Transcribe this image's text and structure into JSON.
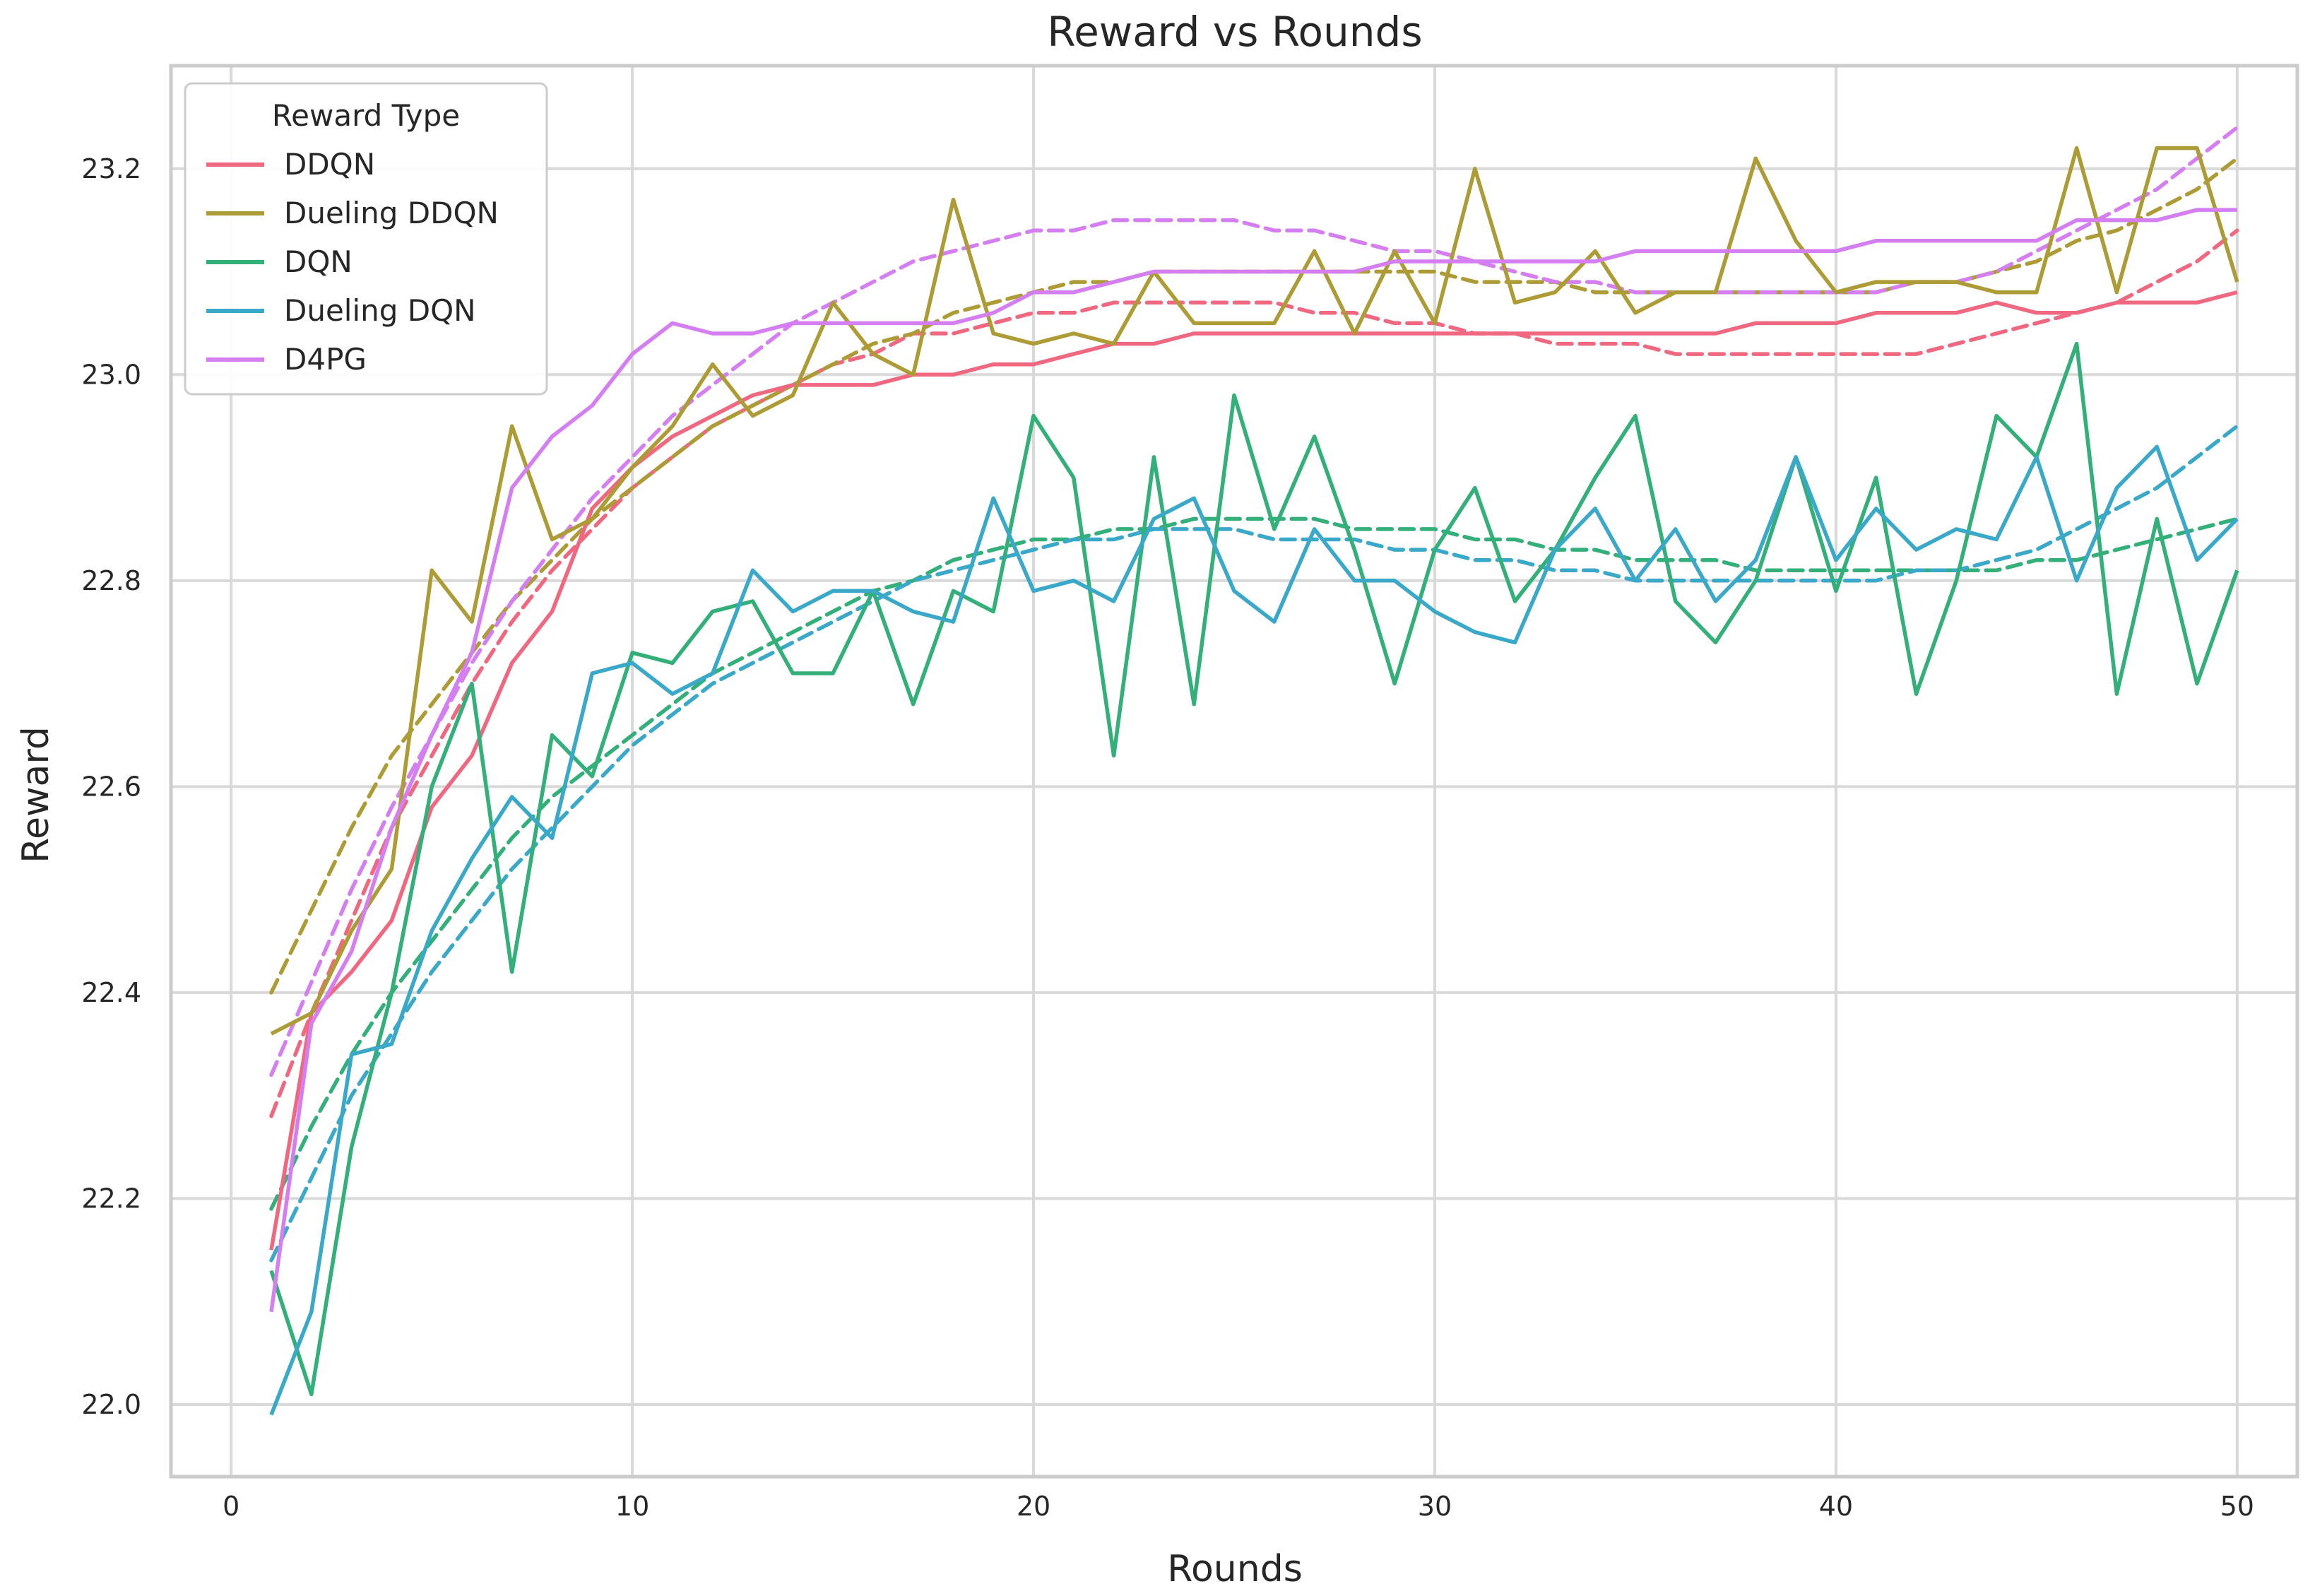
{
  "chart_data": {
    "type": "line",
    "title": "Reward vs Rounds",
    "xlabel": "Rounds",
    "ylabel": "Reward",
    "xlim": [
      -1.5,
      51.5
    ],
    "ylim": [
      21.93,
      23.3
    ],
    "xticks": [
      0,
      10,
      20,
      30,
      40,
      50
    ],
    "yticks": [
      22.0,
      22.2,
      22.4,
      22.6,
      22.8,
      23.0,
      23.2
    ],
    "xtick_labels": [
      "0",
      "10",
      "20",
      "30",
      "40",
      "50"
    ],
    "ytick_labels": [
      "22.0",
      "22.2",
      "22.4",
      "22.6",
      "22.8",
      "23.0",
      "23.2"
    ],
    "grid": true,
    "legend": {
      "title": "Reward Type",
      "placement": "top-left"
    },
    "trend_lines": "dashed polynomial fit per series",
    "x": [
      1,
      2,
      3,
      4,
      5,
      6,
      7,
      8,
      9,
      10,
      11,
      12,
      13,
      14,
      15,
      16,
      17,
      18,
      19,
      20,
      21,
      22,
      23,
      24,
      25,
      26,
      27,
      28,
      29,
      30,
      31,
      32,
      33,
      34,
      35,
      36,
      37,
      38,
      39,
      40,
      41,
      42,
      43,
      44,
      45,
      46,
      47,
      48,
      49,
      50
    ],
    "series": [
      {
        "name": "DDQN",
        "color": "#f0687f",
        "values": [
          22.15,
          22.38,
          22.42,
          22.47,
          22.58,
          22.63,
          22.72,
          22.77,
          22.87,
          22.91,
          22.94,
          22.96,
          22.98,
          22.99,
          22.99,
          22.99,
          23.0,
          23.0,
          23.01,
          23.01,
          23.02,
          23.03,
          23.03,
          23.04,
          23.04,
          23.04,
          23.04,
          23.04,
          23.04,
          23.04,
          23.04,
          23.04,
          23.04,
          23.04,
          23.04,
          23.04,
          23.04,
          23.05,
          23.05,
          23.05,
          23.06,
          23.06,
          23.06,
          23.07,
          23.06,
          23.06,
          23.07,
          23.07,
          23.07,
          23.08
        ],
        "trend": [
          22.28,
          22.38,
          22.47,
          22.56,
          22.63,
          22.7,
          22.76,
          22.81,
          22.85,
          22.89,
          22.92,
          22.95,
          22.97,
          22.99,
          23.01,
          23.02,
          23.04,
          23.04,
          23.05,
          23.06,
          23.06,
          23.07,
          23.07,
          23.07,
          23.07,
          23.07,
          23.06,
          23.06,
          23.05,
          23.05,
          23.04,
          23.04,
          23.03,
          23.03,
          23.03,
          23.02,
          23.02,
          23.02,
          23.02,
          23.02,
          23.02,
          23.02,
          23.03,
          23.04,
          23.05,
          23.06,
          23.07,
          23.09,
          23.11,
          23.14
        ]
      },
      {
        "name": "Dueling DDQN",
        "color": "#ad9c35",
        "values": [
          22.36,
          22.38,
          22.46,
          22.52,
          22.81,
          22.76,
          22.95,
          22.84,
          22.86,
          22.91,
          22.95,
          23.01,
          22.96,
          22.98,
          23.07,
          23.02,
          23.0,
          23.17,
          23.04,
          23.03,
          23.04,
          23.03,
          23.1,
          23.05,
          23.05,
          23.05,
          23.12,
          23.04,
          23.12,
          23.05,
          23.2,
          23.07,
          23.08,
          23.12,
          23.06,
          23.08,
          23.08,
          23.21,
          23.13,
          23.08,
          23.09,
          23.09,
          23.09,
          23.08,
          23.08,
          23.22,
          23.08,
          23.22,
          23.22,
          23.09
        ],
        "trend": [
          22.4,
          22.48,
          22.56,
          22.63,
          22.68,
          22.73,
          22.78,
          22.82,
          22.86,
          22.89,
          22.92,
          22.95,
          22.97,
          22.99,
          23.01,
          23.03,
          23.04,
          23.06,
          23.07,
          23.08,
          23.09,
          23.09,
          23.1,
          23.1,
          23.1,
          23.1,
          23.1,
          23.1,
          23.1,
          23.1,
          23.09,
          23.09,
          23.09,
          23.08,
          23.08,
          23.08,
          23.08,
          23.08,
          23.08,
          23.08,
          23.08,
          23.09,
          23.09,
          23.1,
          23.11,
          23.13,
          23.14,
          23.16,
          23.18,
          23.21
        ]
      },
      {
        "name": "DQN",
        "color": "#33b07a",
        "values": [
          22.13,
          22.01,
          22.25,
          22.4,
          22.6,
          22.7,
          22.42,
          22.65,
          22.61,
          22.73,
          22.72,
          22.77,
          22.78,
          22.71,
          22.71,
          22.79,
          22.68,
          22.79,
          22.77,
          22.96,
          22.9,
          22.63,
          22.92,
          22.68,
          22.98,
          22.85,
          22.94,
          22.83,
          22.7,
          22.83,
          22.89,
          22.78,
          22.83,
          22.9,
          22.96,
          22.78,
          22.74,
          22.8,
          22.92,
          22.79,
          22.9,
          22.69,
          22.8,
          22.96,
          22.92,
          23.03,
          22.69,
          22.86,
          22.7,
          22.81
        ],
        "trend": [
          22.19,
          22.27,
          22.34,
          22.4,
          22.45,
          22.5,
          22.55,
          22.59,
          22.62,
          22.65,
          22.68,
          22.71,
          22.73,
          22.75,
          22.77,
          22.79,
          22.8,
          22.82,
          22.83,
          22.84,
          22.84,
          22.85,
          22.85,
          22.86,
          22.86,
          22.86,
          22.86,
          22.85,
          22.85,
          22.85,
          22.84,
          22.84,
          22.83,
          22.83,
          22.82,
          22.82,
          22.82,
          22.81,
          22.81,
          22.81,
          22.81,
          22.81,
          22.81,
          22.81,
          22.82,
          22.82,
          22.83,
          22.84,
          22.85,
          22.86
        ]
      },
      {
        "name": "Dueling DQN",
        "color": "#3aa9c9",
        "values": [
          21.99,
          22.09,
          22.34,
          22.35,
          22.46,
          22.53,
          22.59,
          22.55,
          22.71,
          22.72,
          22.69,
          22.71,
          22.81,
          22.77,
          22.79,
          22.79,
          22.77,
          22.76,
          22.88,
          22.79,
          22.8,
          22.78,
          22.86,
          22.88,
          22.79,
          22.76,
          22.85,
          22.8,
          22.8,
          22.77,
          22.75,
          22.74,
          22.83,
          22.87,
          22.8,
          22.85,
          22.78,
          22.82,
          22.92,
          22.82,
          22.87,
          22.83,
          22.85,
          22.84,
          22.92,
          22.8,
          22.89,
          22.93,
          22.82,
          22.86
        ],
        "trend": [
          22.14,
          22.22,
          22.3,
          22.36,
          22.42,
          22.47,
          22.52,
          22.56,
          22.6,
          22.64,
          22.67,
          22.7,
          22.72,
          22.74,
          22.76,
          22.78,
          22.8,
          22.81,
          22.82,
          22.83,
          22.84,
          22.84,
          22.85,
          22.85,
          22.85,
          22.84,
          22.84,
          22.84,
          22.83,
          22.83,
          22.82,
          22.82,
          22.81,
          22.81,
          22.8,
          22.8,
          22.8,
          22.8,
          22.8,
          22.8,
          22.8,
          22.81,
          22.81,
          22.82,
          22.83,
          22.85,
          22.87,
          22.89,
          22.92,
          22.95
        ]
      },
      {
        "name": "D4PG",
        "color": "#d47ef2",
        "values": [
          22.09,
          22.37,
          22.44,
          22.56,
          22.65,
          22.73,
          22.89,
          22.94,
          22.97,
          23.02,
          23.05,
          23.04,
          23.04,
          23.05,
          23.05,
          23.05,
          23.05,
          23.05,
          23.06,
          23.08,
          23.08,
          23.09,
          23.1,
          23.1,
          23.1,
          23.1,
          23.1,
          23.1,
          23.11,
          23.11,
          23.11,
          23.11,
          23.11,
          23.11,
          23.12,
          23.12,
          23.12,
          23.12,
          23.12,
          23.12,
          23.13,
          23.13,
          23.13,
          23.13,
          23.13,
          23.15,
          23.15,
          23.15,
          23.16,
          23.16
        ],
        "trend": [
          22.32,
          22.41,
          22.5,
          22.58,
          22.65,
          22.72,
          22.78,
          22.83,
          22.88,
          22.92,
          22.96,
          22.99,
          23.02,
          23.05,
          23.07,
          23.09,
          23.11,
          23.12,
          23.13,
          23.14,
          23.14,
          23.15,
          23.15,
          23.15,
          23.15,
          23.14,
          23.14,
          23.13,
          23.12,
          23.12,
          23.11,
          23.1,
          23.09,
          23.09,
          23.08,
          23.08,
          23.08,
          23.08,
          23.08,
          23.08,
          23.08,
          23.09,
          23.09,
          23.1,
          23.12,
          23.14,
          23.16,
          23.18,
          23.21,
          23.24
        ]
      }
    ]
  }
}
